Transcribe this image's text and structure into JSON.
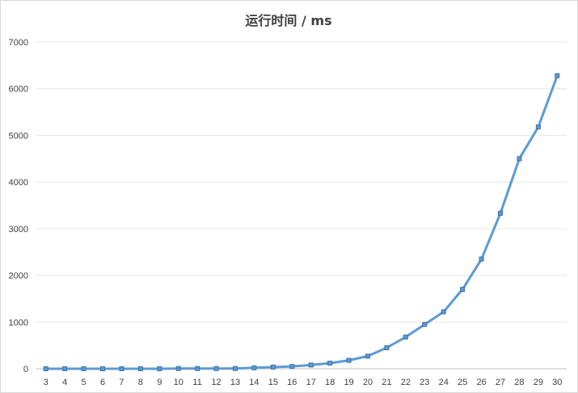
{
  "chart_data": {
    "type": "line",
    "title": "运行时间 / ms",
    "xlabel": "",
    "ylabel": "",
    "x": [
      3,
      4,
      5,
      6,
      7,
      8,
      9,
      10,
      11,
      12,
      13,
      14,
      15,
      16,
      17,
      18,
      19,
      20,
      21,
      22,
      23,
      24,
      25,
      26,
      27,
      28,
      29,
      30
    ],
    "series": [
      {
        "values": [
          0,
          0,
          0,
          0,
          0,
          0,
          0,
          5,
          5,
          5,
          5,
          20,
          35,
          50,
          80,
          120,
          180,
          270,
          450,
          680,
          950,
          1220,
          1700,
          2350,
          3330,
          4500,
          5180,
          6280
        ]
      }
    ],
    "ylim": [
      0,
      7000
    ],
    "yticks": [
      0,
      1000,
      2000,
      3000,
      4000,
      5000,
      6000,
      7000
    ],
    "grid": true,
    "legend": "none",
    "line_color": "#5b9bd5",
    "marker_color": "#41719c"
  }
}
